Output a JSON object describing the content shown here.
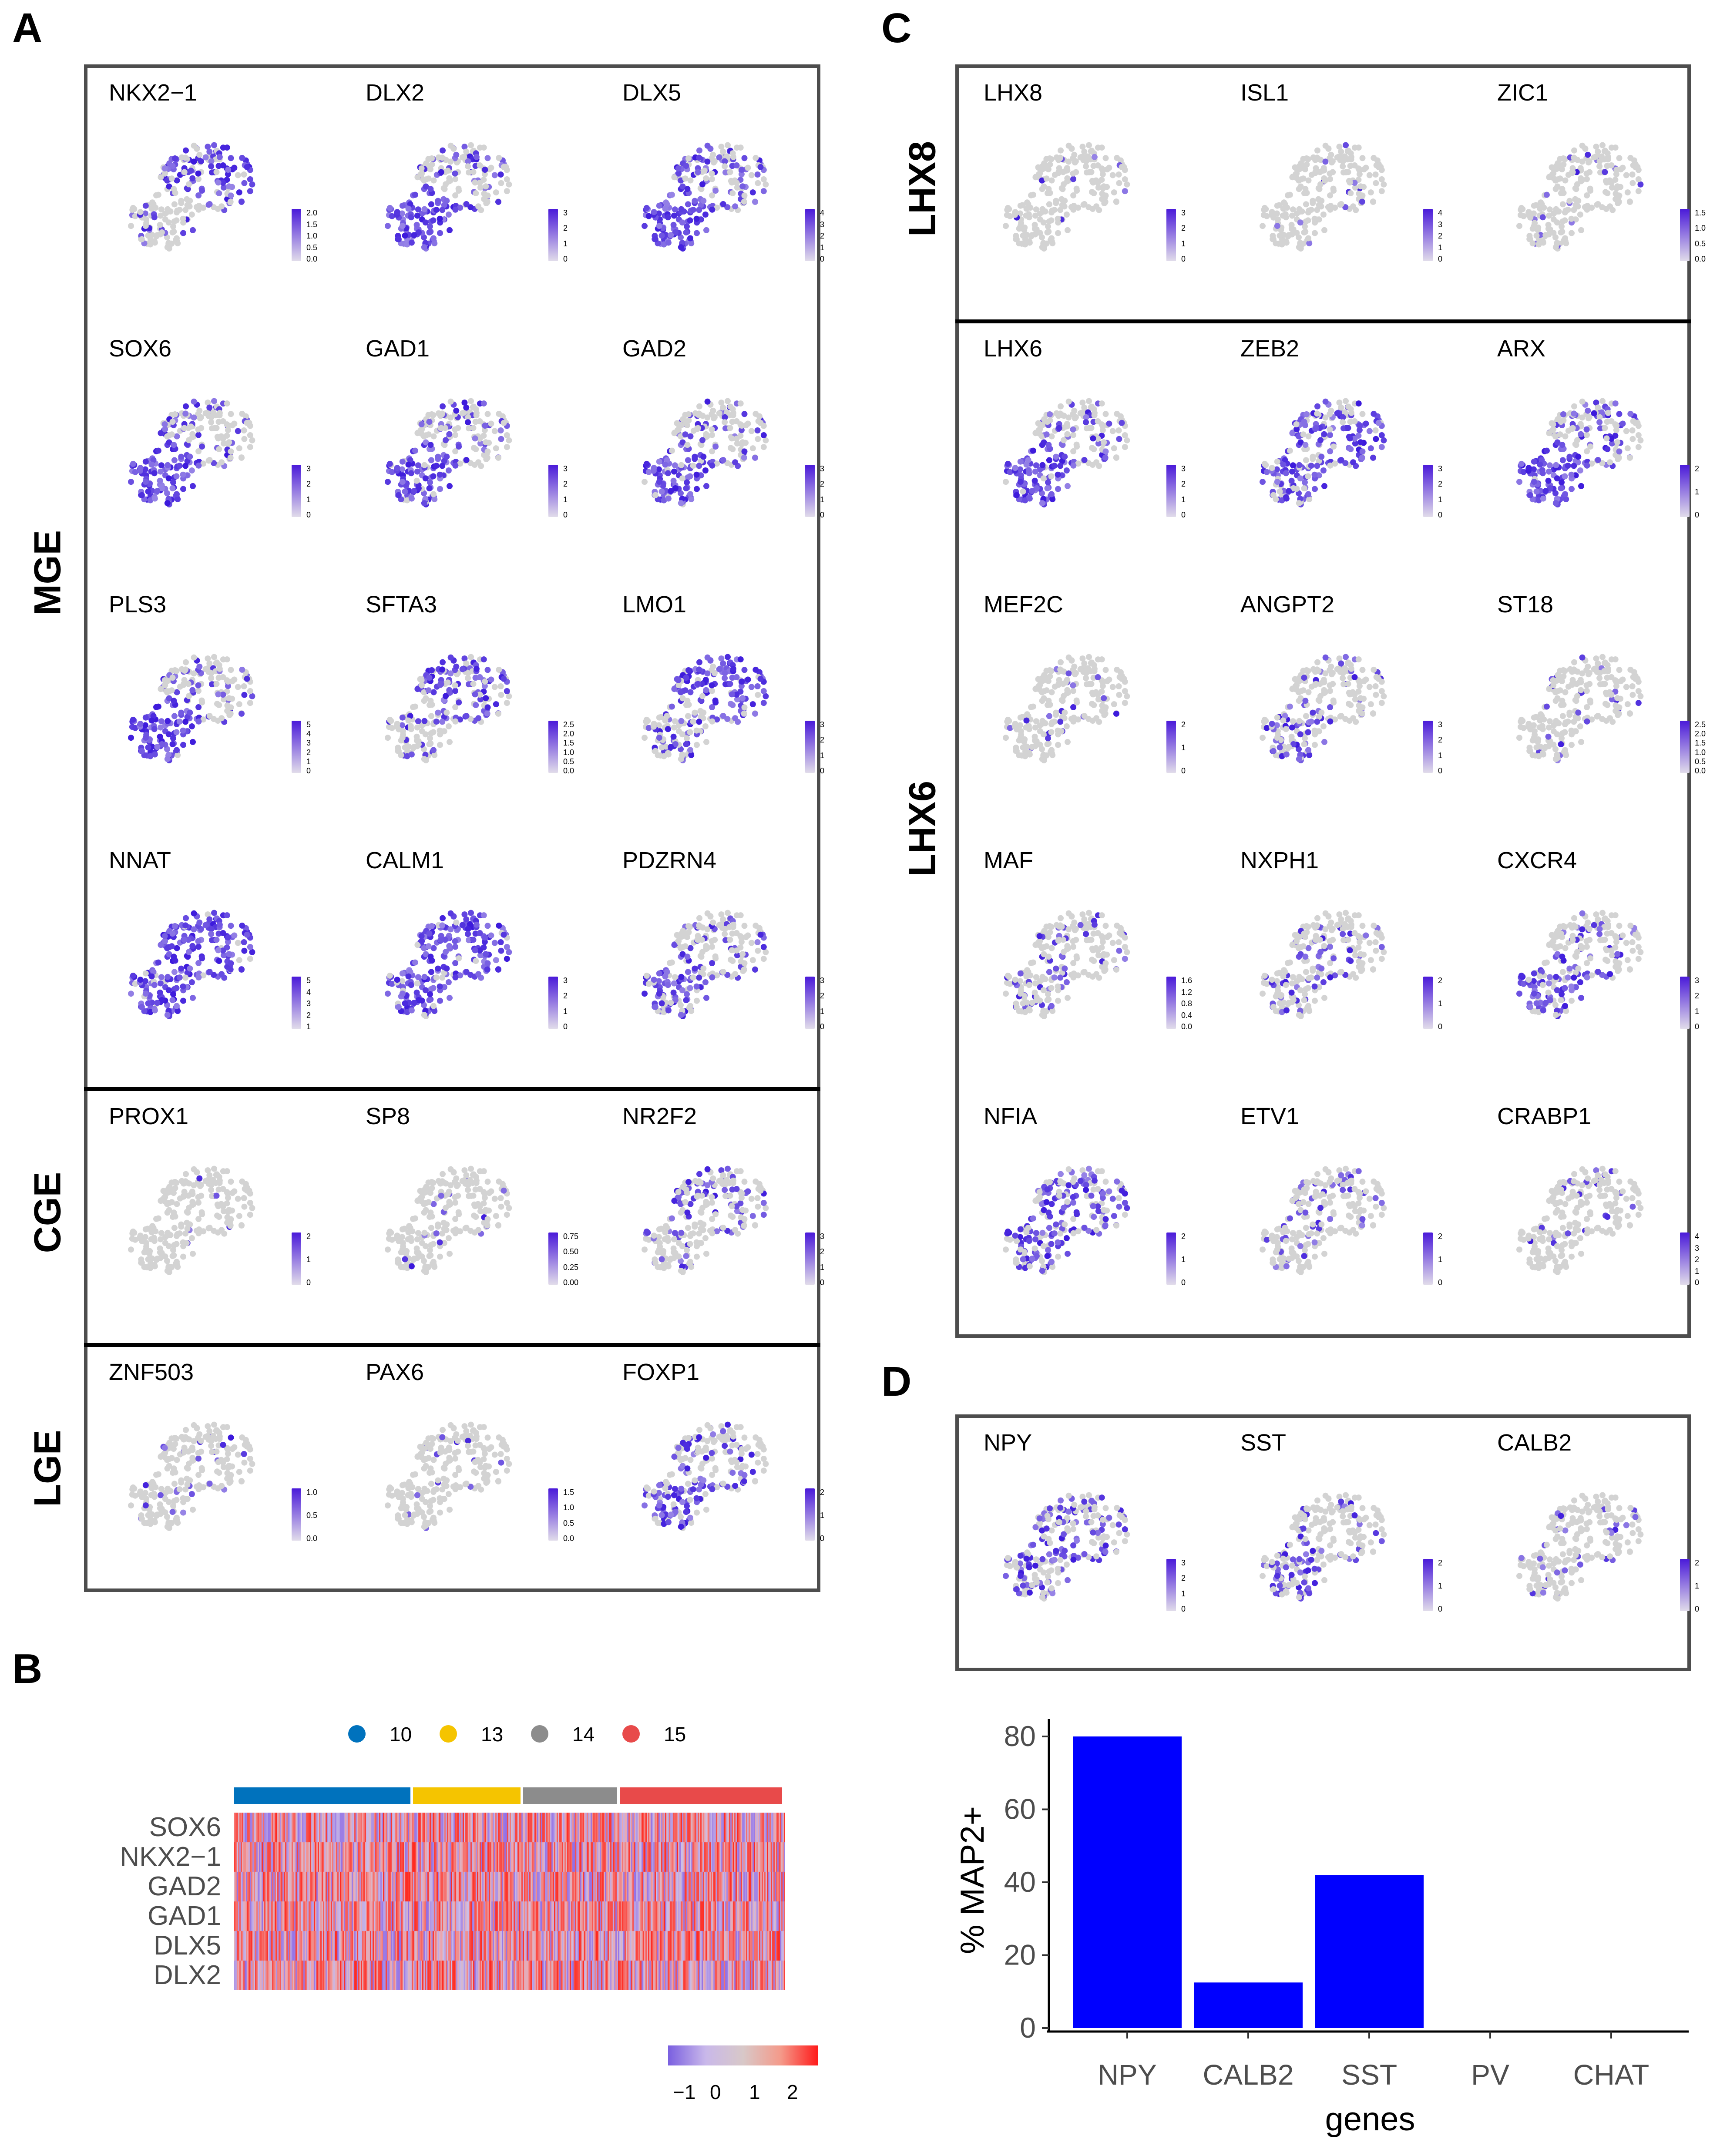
{
  "panel_letters": {
    "a": "A",
    "b": "B",
    "c": "C",
    "d": "D"
  },
  "panel_a": {
    "groups": [
      {
        "label": "MGE",
        "rows": [
          [
            "NKX2−1",
            "DLX2",
            "DLX5"
          ],
          [
            "SOX6",
            "GAD1",
            "GAD2"
          ],
          [
            "PLS3",
            "SFTA3",
            "LMO1"
          ],
          [
            "NNAT",
            "CALM1",
            "PDZRN4"
          ]
        ]
      },
      {
        "label": "CGE",
        "rows": [
          [
            "PROX1",
            "SP8",
            "NR2F2"
          ]
        ]
      },
      {
        "label": "LGE",
        "rows": [
          [
            "ZNF503",
            "PAX6",
            "FOXP1"
          ]
        ]
      }
    ],
    "legends": [
      [
        [
          "2.0",
          "1.5",
          "1.0",
          "0.5",
          "0.0"
        ],
        [
          "3",
          "2",
          "1",
          "0"
        ],
        [
          "4",
          "3",
          "2",
          "1",
          "0"
        ]
      ],
      [
        [
          "3",
          "2",
          "1",
          "0"
        ],
        [
          "3",
          "2",
          "1",
          "0"
        ],
        [
          "3",
          "2",
          "1",
          "0"
        ]
      ],
      [
        [
          "5",
          "4",
          "3",
          "2",
          "1",
          "0"
        ],
        [
          "2.5",
          "2.0",
          "1.5",
          "1.0",
          "0.5",
          "0.0"
        ],
        [
          "3",
          "2",
          "1",
          "0"
        ]
      ],
      [
        [
          "5",
          "4",
          "3",
          "2",
          "1"
        ],
        [
          "3",
          "2",
          "1",
          "0"
        ],
        [
          "3",
          "2",
          "1",
          "0"
        ]
      ],
      [
        [
          "2",
          "1",
          "0"
        ],
        [
          "0.75",
          "0.50",
          "0.25",
          "0.00"
        ],
        [
          "3",
          "2",
          "1",
          "0"
        ]
      ],
      [
        [
          "1.0",
          "0.5",
          "0.0"
        ],
        [
          "1.5",
          "1.0",
          "0.5",
          "0.0"
        ],
        [
          "2",
          "1",
          "0"
        ]
      ]
    ]
  },
  "panel_b": {
    "clusters": [
      {
        "name": "10",
        "color": "#0072bd"
      },
      {
        "name": "13",
        "color": "#f5c400"
      },
      {
        "name": "14",
        "color": "#8c8c8c"
      },
      {
        "name": "15",
        "color": "#e84a4a"
      }
    ],
    "cluster_fractions": [
      0.325,
      0.2,
      0.175,
      0.3
    ],
    "genes": [
      "SOX6",
      "NKX2−1",
      "GAD2",
      "GAD1",
      "DLX5",
      "DLX2"
    ],
    "scale_ticks": [
      "−1",
      "0",
      "1",
      "2"
    ]
  },
  "panel_c": {
    "groups": [
      {
        "label": "LHX8",
        "rows": [
          [
            "LHX8",
            "ISL1",
            "ZIC1"
          ]
        ]
      },
      {
        "label": "LHX6",
        "rows": [
          [
            "LHX6",
            "ZEB2",
            "ARX"
          ],
          [
            "MEF2C",
            "ANGPT2",
            "ST18"
          ],
          [
            "MAF",
            "NXPH1",
            "CXCR4"
          ],
          [
            "NFIA",
            "ETV1",
            "CRABP1"
          ]
        ]
      }
    ],
    "legends": [
      [
        [
          "3",
          "2",
          "1",
          "0"
        ],
        [
          "4",
          "3",
          "2",
          "1",
          "0"
        ],
        [
          "1.5",
          "1.0",
          "0.5",
          "0.0"
        ]
      ],
      [
        [
          "3",
          "2",
          "1",
          "0"
        ],
        [
          "3",
          "2",
          "1",
          "0"
        ],
        [
          "2",
          "1",
          "0"
        ]
      ],
      [
        [
          "2",
          "1",
          "0"
        ],
        [
          "3",
          "2",
          "1",
          "0"
        ],
        [
          "2.5",
          "2.0",
          "1.5",
          "1.0",
          "0.5",
          "0.0"
        ]
      ],
      [
        [
          "1.6",
          "1.2",
          "0.8",
          "0.4",
          "0.0"
        ],
        [
          "2",
          "1",
          "0"
        ],
        [
          "3",
          "2",
          "1",
          "0"
        ]
      ],
      [
        [
          "2",
          "1",
          "0"
        ],
        [
          "2",
          "1",
          "0"
        ],
        [
          "4",
          "3",
          "2",
          "1",
          "0"
        ]
      ]
    ]
  },
  "panel_d": {
    "genes": [
      "NPY",
      "SST",
      "CALB2"
    ],
    "legends": [
      [
        "3",
        "2",
        "1",
        "0"
      ],
      [
        "2",
        "1",
        "0"
      ],
      [
        "2",
        "1",
        "0"
      ]
    ]
  },
  "chart_data": {
    "type": "bar",
    "categories": [
      "NPY",
      "CALB2",
      "SST",
      "PV",
      "CHAT"
    ],
    "values": [
      80,
      12.5,
      42,
      0,
      0
    ],
    "xlabel": "genes",
    "ylabel": "% MAP2+",
    "ylim": [
      0,
      82
    ],
    "yticks": [
      "0",
      "20",
      "40",
      "60",
      "80"
    ],
    "bar_color": "#0000ff",
    "grid": false
  }
}
